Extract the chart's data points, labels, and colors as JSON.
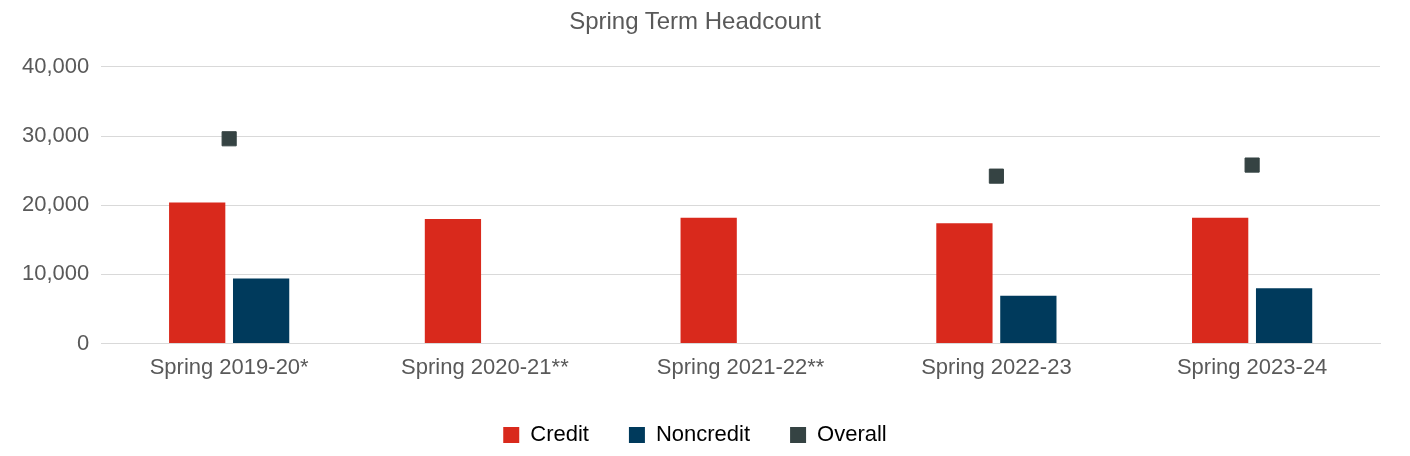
{
  "chart_data": {
    "type": "bar",
    "title": "Spring Term Headcount",
    "categories": [
      "Spring 2019-20*",
      "Spring 2020-21**",
      "Spring 2021-22**",
      "Spring 2022-23",
      "Spring 2023-24"
    ],
    "series": [
      {
        "name": "Credit",
        "color": "#d9291c",
        "values": [
          20400,
          18000,
          18200,
          17400,
          18200
        ]
      },
      {
        "name": "Noncredit",
        "color": "#003a5c",
        "values": [
          9400,
          null,
          null,
          6900,
          8000
        ]
      },
      {
        "name": "Overall",
        "type": "scatter",
        "color": "#354343",
        "marker": "square",
        "x": [
          "Spring 2019-20*",
          "Spring 2022-23",
          "Spring 2023-24"
        ],
        "values": [
          29600,
          24200,
          25800
        ]
      }
    ],
    "ylim": [
      0,
      40000
    ],
    "yticks": [
      0,
      {
        "value": 10000,
        "label": "10,000"
      },
      {
        "value": 20000,
        "label": "20,000"
      },
      {
        "value": 30000,
        "label": "30,000"
      },
      {
        "value": 40000,
        "label": "40,000"
      }
    ],
    "grid": "y",
    "legend": "bottom"
  }
}
